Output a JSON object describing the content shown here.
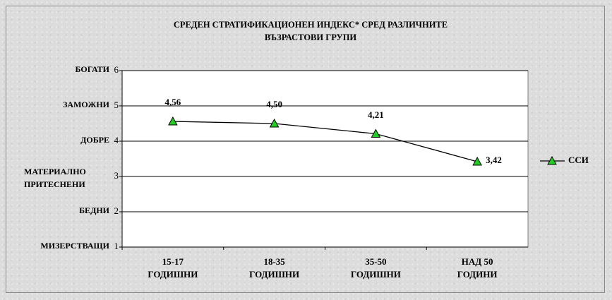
{
  "chart_data": {
    "type": "line",
    "title": "СРЕДЕН СТРАТИФИКАЦИОНЕН ИНДЕКС* СРЕД РАЗЛИЧНИТЕ\nВЪЗРАСТОВИ ГРУПИ",
    "categories": [
      "15-17\nГОДИШНИ",
      "18-35\nГОДИШНИ",
      "35-50\nГОДИШНИ",
      "НАД 50\nГОДИНИ"
    ],
    "series": [
      {
        "name": "ССИ",
        "color": "#000000",
        "marker_color": "#22cc22",
        "values": [
          4.56,
          4.5,
          4.21,
          3.42
        ],
        "value_labels": [
          "4,56",
          "4,50",
          "4,21",
          "3,42"
        ]
      }
    ],
    "ylim": [
      1,
      6
    ],
    "yticks": [
      1,
      2,
      3,
      4,
      5,
      6
    ],
    "y_level_labels": [
      "МИЗЕРСТВАЩИ",
      "БЕДНИ",
      "МАТЕРИАЛНО\nПРИТЕСНЕНИ",
      "ДОБРЕ",
      "ЗАМОЖНИ",
      "БОГАТИ"
    ],
    "grid": true,
    "legend": "right"
  }
}
